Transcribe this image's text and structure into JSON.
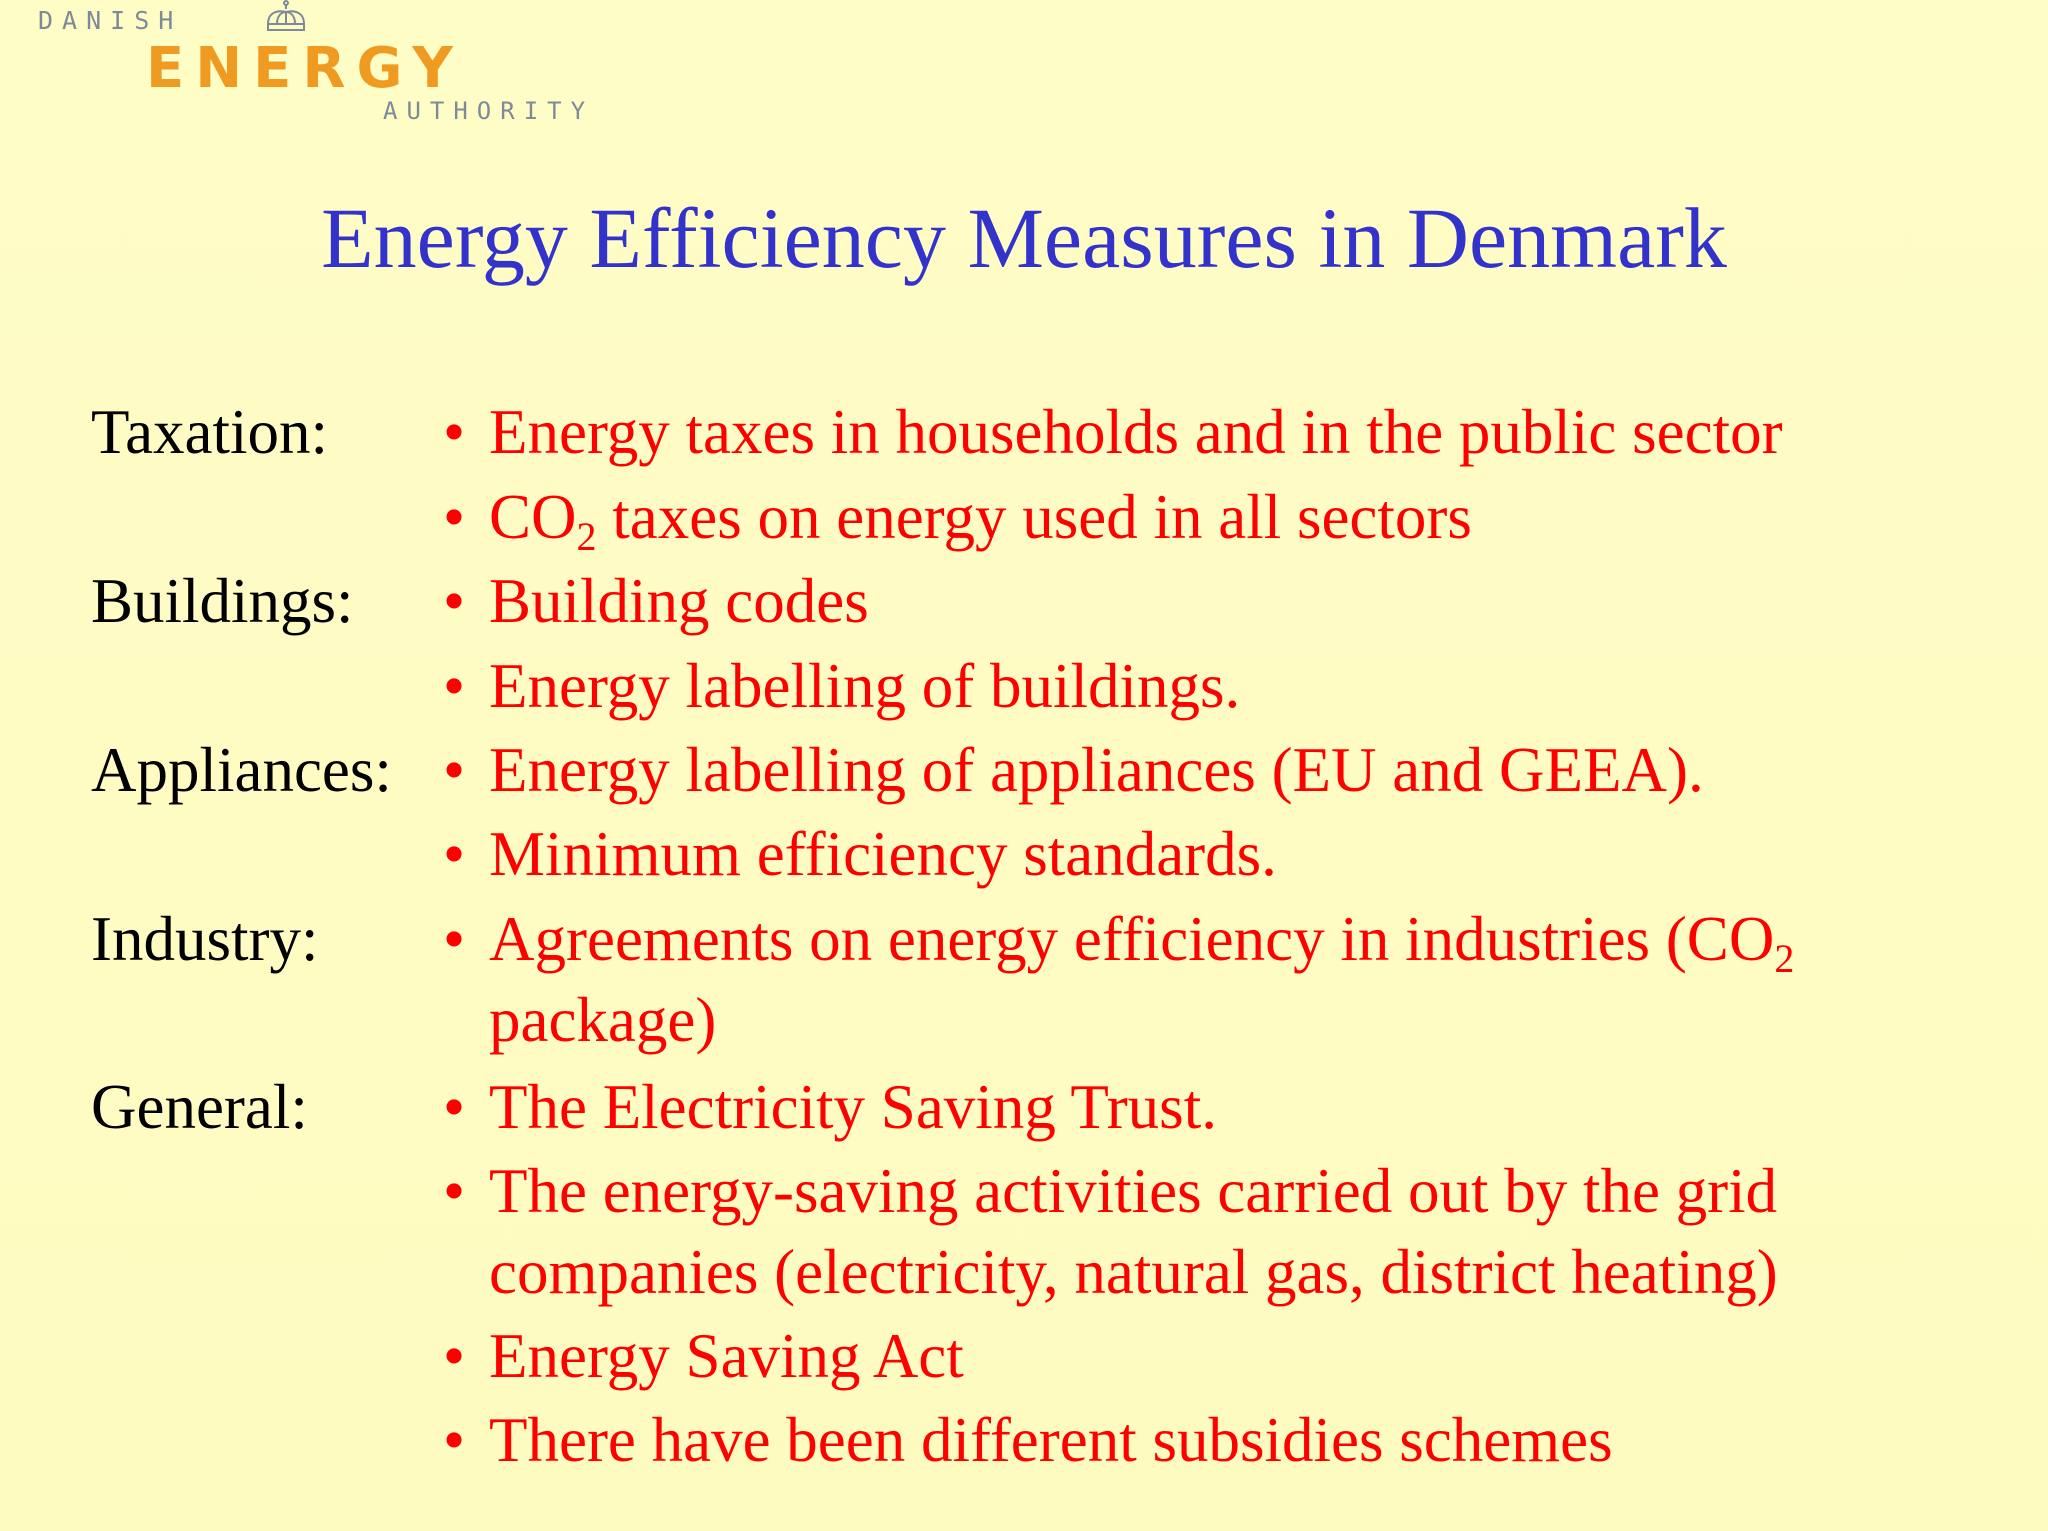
{
  "logo": {
    "line1": "DANISH",
    "line2": "ENERGY",
    "line3": "AUTHORITY",
    "crown_icon": "crown-icon",
    "brand_color": "#ef9b22"
  },
  "title": "Energy Efficiency Measures in Denmark",
  "colors": {
    "title": "#3333cc",
    "label": "#000000",
    "bullet": "#ff0000",
    "background": "#fefdc4"
  },
  "sections": [
    {
      "label": "Taxation:",
      "items": [
        "Energy taxes in households and in the public sector",
        {
          "before": "CO",
          "sub": "2",
          "after": " taxes on energy used in all sectors"
        }
      ]
    },
    {
      "label": "Buildings:",
      "items": [
        "Building codes",
        "Energy labelling of buildings."
      ]
    },
    {
      "label": "Appliances:",
      "items": [
        "Energy labelling of appliances (EU and GEEA).",
        "Minimum efficiency standards."
      ]
    },
    {
      "label": "Industry:",
      "items": [
        {
          "before": "Agreements on energy efficiency in industries (CO",
          "sub": "2",
          "after": "",
          "continuation": "package)"
        }
      ]
    },
    {
      "label": "General:",
      "items": [
        "The Electricity Saving Trust.",
        {
          "text": "The energy-saving activities carried out by the grid",
          "continuation": "companies (electricity, natural gas, district heating)"
        },
        "Energy Saving Act",
        "There have been different subsidies schemes"
      ]
    }
  ],
  "bullet_char": "•"
}
